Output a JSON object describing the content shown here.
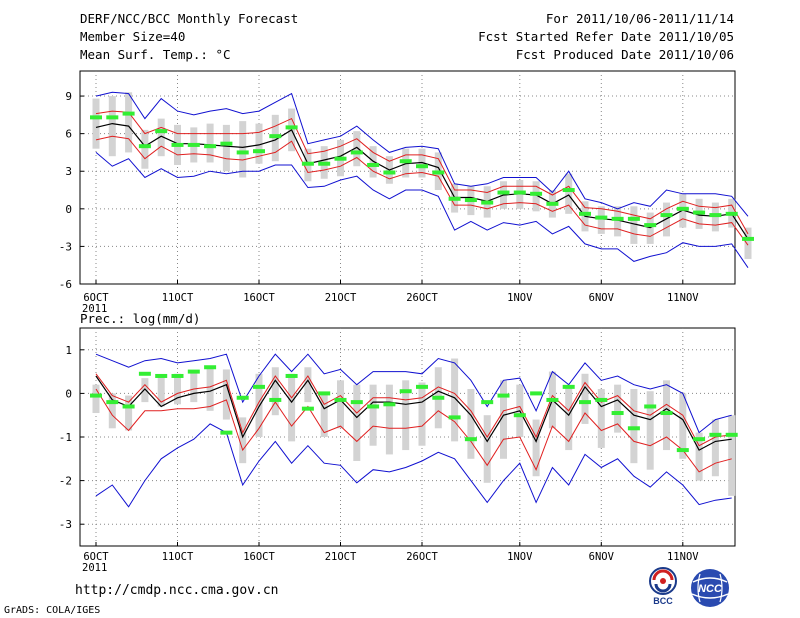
{
  "header": {
    "title": "DERF/NCC/BCC Monthly Forecast",
    "member_size": "Member Size=40",
    "variable": "Mean Surf. Temp.: °C",
    "period": "For 2011/10/06-2011/11/14",
    "start_date": "Fcst Started Refer Date 2011/10/05",
    "produced_date": "Fcst Produced Date 2011/10/06"
  },
  "footer": {
    "url": "http://cmdp.ncc.cma.gov.cn",
    "credit": "GrADS: COLA/IGES",
    "logo_bcc": "BCC",
    "logo_ncc": "NCC"
  },
  "colors": {
    "ensemble_bar": "#d3d3d3",
    "mean": "#000000",
    "spread": "#e02020",
    "extremes": "#1010d0",
    "climatology": "#33ee33",
    "grid": "#888888"
  },
  "chart_data": [
    {
      "type": "line",
      "title": "Mean Surf. Temp.: °C",
      "xlabel": "",
      "ylabel": "",
      "xlim": [
        0,
        40
      ],
      "ylim": [
        -6,
        11
      ],
      "grid": true,
      "yticks": [
        -6,
        -3,
        0,
        3,
        6,
        9
      ],
      "xticks": [
        {
          "day": 0,
          "label": "6OCT"
        },
        {
          "day": 5,
          "label": "11OCT"
        },
        {
          "day": 10,
          "label": "16OCT"
        },
        {
          "day": 15,
          "label": "21OCT"
        },
        {
          "day": 20,
          "label": "26OCT"
        },
        {
          "day": 26,
          "label": "1NOV"
        },
        {
          "day": 31,
          "label": "6NOV"
        },
        {
          "day": 36,
          "label": "11NOV"
        }
      ],
      "year_label": "2011",
      "series": [
        {
          "name": "ensemble-mean",
          "values": [
            6.5,
            6.8,
            6.6,
            5.0,
            5.8,
            5.2,
            5.2,
            5.1,
            5.0,
            4.9,
            5.1,
            5.5,
            6.3,
            3.6,
            3.9,
            4.2,
            4.9,
            3.8,
            3.1,
            3.6,
            3.7,
            3.3,
            0.9,
            0.9,
            0.6,
            1.1,
            1.2,
            1.1,
            0.4,
            1.1,
            -0.6,
            -0.8,
            -0.9,
            -1.2,
            -1.5,
            -0.8,
            -0.1,
            -0.5,
            -0.6,
            -0.4,
            -2.4
          ]
        },
        {
          "name": "mean-plus-sd",
          "values": [
            7.6,
            7.8,
            7.7,
            6.0,
            6.5,
            6.0,
            6.0,
            6.0,
            6.0,
            6.0,
            6.1,
            6.6,
            7.2,
            4.4,
            4.6,
            5.0,
            5.6,
            4.5,
            3.8,
            4.3,
            4.3,
            4.0,
            1.5,
            1.5,
            1.3,
            1.8,
            1.8,
            1.8,
            1.1,
            1.8,
            0.1,
            0.0,
            -0.2,
            -0.5,
            -0.8,
            0.0,
            0.6,
            0.2,
            0.1,
            0.3,
            -2.0
          ]
        },
        {
          "name": "mean-minus-sd",
          "values": [
            5.5,
            5.8,
            5.6,
            4.0,
            5.0,
            4.3,
            4.4,
            4.3,
            4.0,
            3.9,
            4.2,
            4.5,
            5.4,
            2.9,
            3.1,
            3.4,
            4.1,
            3.0,
            2.4,
            2.8,
            2.9,
            2.6,
            0.3,
            0.3,
            0.0,
            0.4,
            0.5,
            0.4,
            -0.2,
            0.3,
            -1.3,
            -1.6,
            -1.6,
            -2.0,
            -2.2,
            -1.5,
            -0.8,
            -1.2,
            -1.3,
            -1.1,
            -2.9
          ]
        },
        {
          "name": "ensemble-max",
          "values": [
            9.0,
            9.3,
            9.2,
            7.2,
            8.8,
            7.8,
            7.5,
            7.8,
            8.0,
            7.6,
            7.8,
            8.5,
            9.2,
            5.2,
            5.5,
            5.8,
            6.6,
            5.5,
            4.5,
            4.9,
            5.0,
            4.8,
            2.0,
            1.8,
            2.0,
            2.5,
            2.5,
            2.5,
            1.3,
            3.0,
            0.8,
            0.5,
            0.0,
            0.5,
            0.2,
            1.5,
            1.2,
            1.2,
            1.2,
            1.0,
            -0.6
          ]
        },
        {
          "name": "ensemble-min",
          "values": [
            4.5,
            3.4,
            4.0,
            2.5,
            3.2,
            2.5,
            2.6,
            3.0,
            2.8,
            3.0,
            3.0,
            3.5,
            3.5,
            1.7,
            1.8,
            2.3,
            2.6,
            1.5,
            0.8,
            1.5,
            1.5,
            1.0,
            -1.7,
            -1.0,
            -1.7,
            -1.1,
            -1.3,
            -1.0,
            -2.0,
            -1.4,
            -2.8,
            -3.2,
            -3.2,
            -4.2,
            -3.8,
            -3.5,
            -2.7,
            -3.0,
            -3.0,
            -2.8,
            -4.7
          ]
        },
        {
          "name": "box-upper",
          "values": [
            8.8,
            9.0,
            9.3,
            6.3,
            7.2,
            6.7,
            6.5,
            6.8,
            6.7,
            7.0,
            6.8,
            7.5,
            8.0,
            4.8,
            5.0,
            5.5,
            6.2,
            5.0,
            4.2,
            4.8,
            4.8,
            4.5,
            2.0,
            1.8,
            1.8,
            2.2,
            2.3,
            2.2,
            1.5,
            2.8,
            0.6,
            0.2,
            0.2,
            0.2,
            -0.3,
            0.5,
            1.2,
            0.8,
            0.5,
            0.8,
            -1.5
          ]
        },
        {
          "name": "box-lower",
          "values": [
            4.8,
            4.2,
            4.5,
            3.2,
            4.2,
            3.5,
            3.7,
            3.7,
            3.0,
            2.5,
            3.6,
            3.8,
            4.6,
            2.2,
            2.4,
            2.6,
            3.4,
            2.5,
            2.0,
            2.5,
            2.5,
            1.5,
            -0.3,
            -0.5,
            -0.7,
            0.0,
            0.0,
            -0.2,
            -0.7,
            -0.4,
            -1.8,
            -2.0,
            -2.2,
            -2.8,
            -2.8,
            -2.2,
            -1.5,
            -1.6,
            -1.8,
            -1.5,
            -4.0
          ]
        },
        {
          "name": "climatology",
          "values": [
            7.3,
            7.3,
            7.6,
            5.0,
            6.2,
            5.1,
            5.1,
            5.0,
            5.2,
            4.5,
            4.6,
            5.8,
            6.5,
            3.6,
            3.6,
            4.0,
            4.5,
            3.5,
            2.9,
            3.8,
            3.4,
            2.9,
            0.8,
            0.7,
            0.5,
            1.3,
            1.3,
            1.2,
            0.4,
            1.5,
            -0.4,
            -0.7,
            -0.8,
            -0.8,
            -1.3,
            -0.5,
            0.0,
            -0.3,
            -0.5,
            -0.4,
            -2.4
          ]
        }
      ]
    },
    {
      "type": "line",
      "title": "Prec.: log(mm/d)",
      "xlabel": "",
      "ylabel": "",
      "xlim": [
        0,
        40
      ],
      "ylim": [
        -3.5,
        1.5
      ],
      "grid": true,
      "yticks": [
        -3,
        -2,
        -1,
        0,
        1
      ],
      "xticks": [
        {
          "day": 0,
          "label": "6OCT"
        },
        {
          "day": 5,
          "label": "11OCT"
        },
        {
          "day": 10,
          "label": "16OCT"
        },
        {
          "day": 15,
          "label": "21OCT"
        },
        {
          "day": 20,
          "label": "26OCT"
        },
        {
          "day": 26,
          "label": "1NOV"
        },
        {
          "day": 31,
          "label": "6NOV"
        },
        {
          "day": 36,
          "label": "11NOV"
        }
      ],
      "year_label": "2011",
      "series": [
        {
          "name": "ensemble-mean",
          "values": [
            0.4,
            -0.15,
            -0.3,
            0.1,
            -0.3,
            -0.1,
            0.0,
            0.05,
            0.2,
            -1.0,
            -0.3,
            0.3,
            -0.2,
            0.3,
            -0.35,
            -0.15,
            -0.55,
            -0.2,
            -0.2,
            -0.25,
            -0.2,
            0.05,
            -0.1,
            -0.5,
            -1.1,
            -0.5,
            -0.4,
            -1.1,
            -0.15,
            -0.5,
            0.15,
            -0.3,
            -0.15,
            -0.5,
            -0.6,
            -0.35,
            -0.6,
            -1.3,
            -1.1,
            -1.05
          ]
        },
        {
          "name": "mean-plus-sd",
          "values": [
            0.45,
            -0.05,
            -0.2,
            0.2,
            -0.2,
            0.0,
            0.1,
            0.15,
            0.3,
            -0.9,
            -0.2,
            0.4,
            -0.1,
            0.4,
            -0.25,
            -0.05,
            -0.45,
            -0.1,
            -0.1,
            -0.15,
            -0.1,
            0.15,
            0.0,
            -0.4,
            -1.0,
            -0.4,
            -0.3,
            -1.0,
            -0.05,
            -0.4,
            0.25,
            -0.2,
            -0.05,
            -0.4,
            -0.5,
            -0.25,
            -0.5,
            -1.2,
            -1.0,
            -0.95
          ]
        },
        {
          "name": "mean-minus-sd",
          "values": [
            0.1,
            -0.5,
            -0.85,
            -0.4,
            -0.4,
            -0.35,
            -0.35,
            -0.3,
            -0.15,
            -1.3,
            -0.8,
            -0.2,
            -0.75,
            -0.3,
            -0.9,
            -0.75,
            -1.1,
            -0.75,
            -0.8,
            -0.8,
            -0.75,
            -0.4,
            -0.65,
            -1.1,
            -1.65,
            -1.05,
            -1.0,
            -1.75,
            -0.75,
            -1.1,
            -0.45,
            -0.85,
            -0.7,
            -1.1,
            -1.2,
            -1.0,
            -1.3,
            -1.8,
            -1.6,
            -1.5
          ]
        },
        {
          "name": "ensemble-max",
          "values": [
            0.9,
            0.75,
            0.6,
            0.75,
            0.8,
            0.7,
            0.75,
            0.8,
            0.9,
            -0.2,
            0.4,
            0.9,
            0.5,
            0.9,
            0.45,
            0.55,
            0.2,
            0.5,
            0.5,
            0.5,
            0.45,
            0.8,
            0.7,
            0.3,
            -0.3,
            0.3,
            0.35,
            -0.4,
            0.5,
            0.2,
            0.7,
            0.3,
            0.4,
            0.2,
            0.1,
            0.2,
            0.0,
            -0.9,
            -0.6,
            -0.5
          ]
        },
        {
          "name": "ensemble-min",
          "values": [
            -2.35,
            -2.1,
            -2.6,
            -2.0,
            -1.5,
            -1.25,
            -1.05,
            -0.7,
            -0.9,
            -2.1,
            -1.55,
            -1.1,
            -1.6,
            -1.2,
            -1.6,
            -1.65,
            -2.05,
            -1.75,
            -1.8,
            -1.7,
            -1.55,
            -1.35,
            -1.5,
            -2.0,
            -2.5,
            -2.0,
            -1.6,
            -2.5,
            -1.7,
            -2.1,
            -1.4,
            -1.7,
            -1.5,
            -1.9,
            -2.15,
            -1.8,
            -2.1,
            -2.55,
            -2.45,
            -2.4
          ]
        },
        {
          "name": "box-upper",
          "values": [
            0.2,
            0.0,
            -0.05,
            0.35,
            0.4,
            0.45,
            0.5,
            0.6,
            0.55,
            -0.55,
            0.45,
            0.6,
            0.45,
            0.6,
            0.0,
            0.3,
            0.2,
            0.2,
            0.2,
            0.3,
            0.25,
            0.6,
            0.8,
            0.1,
            -0.5,
            0.3,
            0.2,
            -0.6,
            0.5,
            0.15,
            0.45,
            0.1,
            0.2,
            0.1,
            0.05,
            0.3,
            0.0,
            -0.9,
            -0.6,
            -0.5
          ]
        },
        {
          "name": "box-lower",
          "values": [
            -0.45,
            -0.8,
            -0.85,
            -0.2,
            -0.3,
            -0.25,
            -0.2,
            -0.4,
            -0.6,
            -1.6,
            -1.0,
            -0.5,
            -1.1,
            -0.2,
            -1.0,
            -0.8,
            -1.55,
            -1.2,
            -1.4,
            -1.3,
            -1.2,
            -0.8,
            -1.1,
            -1.5,
            -2.05,
            -1.5,
            -1.0,
            -1.9,
            -0.8,
            -1.3,
            -0.7,
            -1.25,
            -0.9,
            -1.6,
            -1.75,
            -1.3,
            -1.5,
            -2.0,
            -1.9,
            -2.35
          ]
        },
        {
          "name": "climatology",
          "values": [
            -0.05,
            -0.2,
            -0.3,
            0.45,
            0.4,
            0.4,
            0.5,
            0.6,
            -0.9,
            -0.1,
            0.15,
            -0.15,
            0.4,
            -0.35,
            0.0,
            -0.15,
            -0.2,
            -0.3,
            -0.25,
            0.05,
            0.15,
            -0.1,
            -0.55,
            -1.05,
            -0.2,
            -0.05,
            -0.5,
            0.0,
            -0.15,
            0.15,
            -0.2,
            -0.15,
            -0.45,
            -0.8,
            -0.3,
            -0.45,
            -1.3,
            -1.05,
            -0.95,
            -0.95
          ]
        }
      ]
    }
  ]
}
